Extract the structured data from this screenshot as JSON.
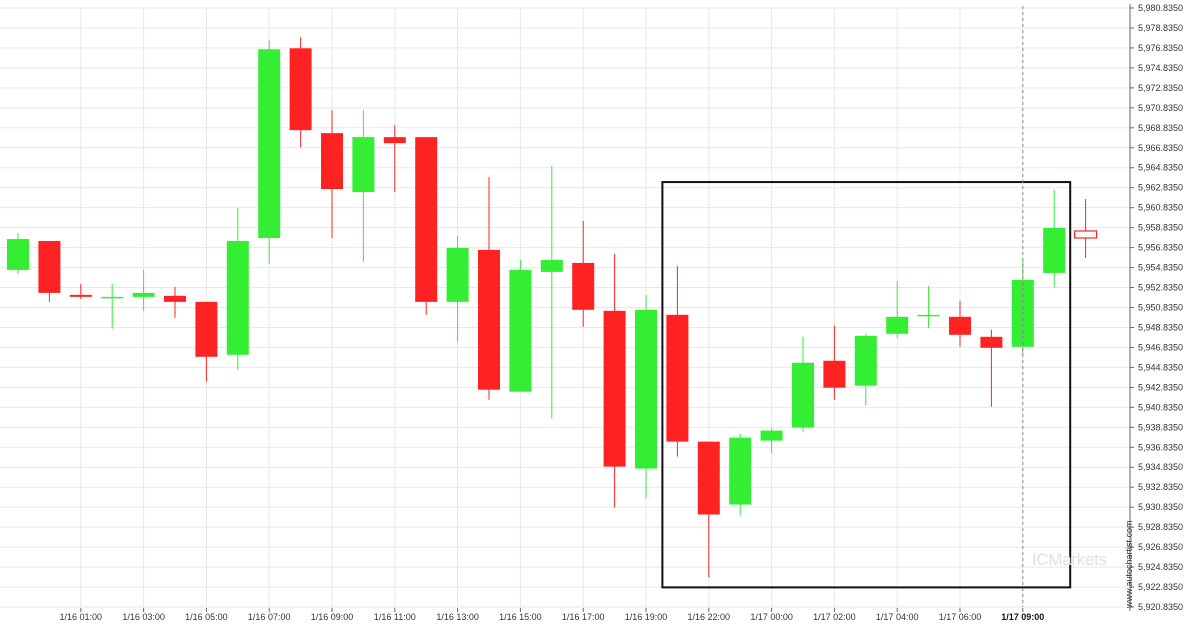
{
  "chart_data": {
    "type": "candlestick",
    "title": "",
    "colors": {
      "up": "#33ee33",
      "down": "#ff2222",
      "grid": "#e8e8e8",
      "box": "#111111",
      "cursor": "#888888"
    },
    "y_axis": {
      "position": "right",
      "ylim": [
        5920.835,
        5980.835
      ],
      "tick_labels": [
        "5,920.8350",
        "5,922.8350",
        "5,924.8350",
        "5,926.8350",
        "5,928.8350",
        "5,930.8350",
        "5,932.8350",
        "5,934.8350",
        "5,936.8350",
        "5,938.8350",
        "5,940.8350",
        "5,942.8350",
        "5,944.8350",
        "5,946.8350",
        "5,948.8350",
        "5,950.8350",
        "5,952.8350",
        "5,954.8350",
        "5,956.8350",
        "5,958.8350",
        "5,960.8350",
        "5,962.8350",
        "5,964.8350",
        "5,966.8350",
        "5,968.8350",
        "5,970.8350",
        "5,972.8350",
        "5,974.8350",
        "5,976.8350",
        "5,978.8350",
        "5,980.8350"
      ]
    },
    "x_axis": {
      "tick_labels": [
        "1/16 01:00",
        "1/16 03:00",
        "1/16 05:00",
        "1/16 07:00",
        "1/16 09:00",
        "1/16 11:00",
        "1/16 13:00",
        "1/16 15:00",
        "1/16 17:00",
        "1/16 19:00",
        "1/16 22:00",
        "1/17 00:00",
        "1/17 02:00",
        "1/17 04:00",
        "1/17 06:00",
        "1/17 09:00"
      ],
      "tick_candle_index": [
        2,
        4,
        6,
        8,
        10,
        12,
        14,
        16,
        18,
        20,
        22,
        24,
        26,
        28,
        30,
        32
      ],
      "highlight_label": "1/17 09:00"
    },
    "candles": [
      {
        "o": 5954.6,
        "h": 5958.3,
        "l": 5954.2,
        "c": 5957.7
      },
      {
        "o": 5957.5,
        "h": 5957.5,
        "l": 5951.4,
        "c": 5952.3
      },
      {
        "o": 5952.1,
        "h": 5953.2,
        "l": 5951.7,
        "c": 5951.9
      },
      {
        "o": 5951.8,
        "h": 5953.2,
        "l": 5948.7,
        "c": 5951.9
      },
      {
        "o": 5951.9,
        "h": 5954.6,
        "l": 5950.5,
        "c": 5952.3
      },
      {
        "o": 5952.0,
        "h": 5952.9,
        "l": 5949.8,
        "c": 5951.4
      },
      {
        "o": 5951.4,
        "h": 5951.4,
        "l": 5943.4,
        "c": 5945.9
      },
      {
        "o": 5946.1,
        "h": 5960.8,
        "l": 5944.6,
        "c": 5957.5
      },
      {
        "o": 5957.8,
        "h": 5977.6,
        "l": 5955.2,
        "c": 5976.7
      },
      {
        "o": 5976.8,
        "h": 5977.9,
        "l": 5966.9,
        "c": 5968.6
      },
      {
        "o": 5968.3,
        "h": 5970.6,
        "l": 5957.8,
        "c": 5962.7
      },
      {
        "o": 5962.4,
        "h": 5970.6,
        "l": 5955.4,
        "c": 5967.9
      },
      {
        "o": 5967.9,
        "h": 5969.1,
        "l": 5962.4,
        "c": 5967.3
      },
      {
        "o": 5967.9,
        "h": 5967.9,
        "l": 5950.1,
        "c": 5951.4
      },
      {
        "o": 5951.4,
        "h": 5958.0,
        "l": 5947.4,
        "c": 5956.8
      },
      {
        "o": 5956.6,
        "h": 5963.9,
        "l": 5941.6,
        "c": 5942.6
      },
      {
        "o": 5942.4,
        "h": 5955.6,
        "l": 5942.4,
        "c": 5954.6
      },
      {
        "o": 5954.4,
        "h": 5965.0,
        "l": 5939.7,
        "c": 5955.6
      },
      {
        "o": 5955.3,
        "h": 5959.5,
        "l": 5948.9,
        "c": 5950.6
      },
      {
        "o": 5950.5,
        "h": 5956.2,
        "l": 5930.8,
        "c": 5934.9
      },
      {
        "o": 5934.7,
        "h": 5952.1,
        "l": 5931.7,
        "c": 5950.6
      },
      {
        "o": 5950.1,
        "h": 5955.0,
        "l": 5935.9,
        "c": 5937.4
      },
      {
        "o": 5937.4,
        "h": 5937.4,
        "l": 5923.8,
        "c": 5930.1
      },
      {
        "o": 5931.1,
        "h": 5938.2,
        "l": 5930.0,
        "c": 5937.8
      },
      {
        "o": 5937.5,
        "h": 5938.8,
        "l": 5936.2,
        "c": 5938.5
      },
      {
        "o": 5938.8,
        "h": 5947.9,
        "l": 5938.4,
        "c": 5945.3
      },
      {
        "o": 5945.5,
        "h": 5949.0,
        "l": 5941.6,
        "c": 5942.8
      },
      {
        "o": 5943.0,
        "h": 5948.2,
        "l": 5941.0,
        "c": 5948.0
      },
      {
        "o": 5948.2,
        "h": 5953.5,
        "l": 5947.8,
        "c": 5949.9
      },
      {
        "o": 5950.0,
        "h": 5953.0,
        "l": 5948.8,
        "c": 5950.1
      },
      {
        "o": 5949.9,
        "h": 5951.5,
        "l": 5946.9,
        "c": 5948.1
      },
      {
        "o": 5947.9,
        "h": 5948.6,
        "l": 5940.9,
        "c": 5946.8
      },
      {
        "o": 5946.9,
        "h": 5955.6,
        "l": 5946.1,
        "c": 5953.6
      },
      {
        "o": 5954.3,
        "h": 5962.6,
        "l": 5952.8,
        "c": 5958.8
      },
      {
        "o": 5958.5,
        "h": 5961.7,
        "l": 5955.8,
        "c": 5957.8
      }
    ],
    "last_candle_style": "hollow",
    "highlight_box": {
      "from_index": 21,
      "to_index": 33,
      "y_top": 5963.4,
      "y_bottom": 5922.8
    },
    "cursor_candle_index": 32,
    "watermarks": {
      "vendor": "ICMarkets",
      "credit": "www.autochartist.com"
    }
  }
}
